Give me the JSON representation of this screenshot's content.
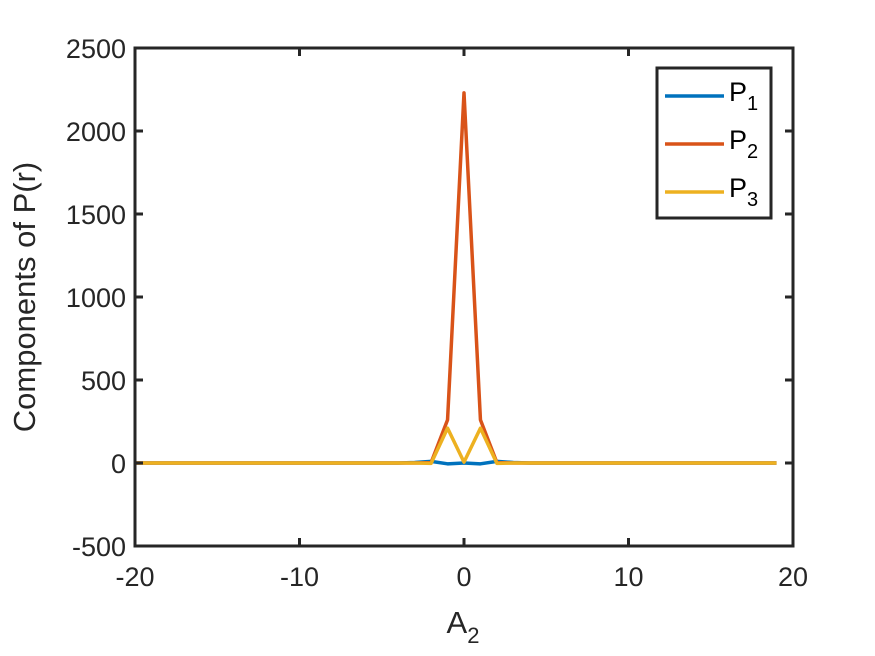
{
  "chart_data": {
    "type": "line",
    "title": "",
    "xlabel": {
      "base": "A",
      "sub": "2"
    },
    "ylabel": "Components of P(r)",
    "xlim": [
      -20,
      20
    ],
    "ylim": [
      -500,
      2500
    ],
    "xticks": [
      -20,
      -10,
      0,
      10,
      20
    ],
    "yticks": [
      -500,
      0,
      500,
      1000,
      1500,
      2000,
      2500
    ],
    "xtick_labels": [
      "-20",
      "-10",
      "0",
      "10",
      "20"
    ],
    "ytick_labels": [
      "-500",
      "0",
      "500",
      "1000",
      "1500",
      "2000",
      "2500"
    ],
    "grid": false,
    "legend_position": "top-right",
    "x": [
      -20,
      -19,
      -18,
      -17,
      -16,
      -15,
      -14,
      -13,
      -12,
      -11,
      -10,
      -9,
      -8,
      -7,
      -6,
      -5,
      -4,
      -3,
      -2,
      -1,
      0,
      1,
      2,
      3,
      4,
      5,
      6,
      7,
      8,
      9,
      10,
      11,
      12,
      13,
      14,
      15,
      16,
      17,
      18,
      19
    ],
    "series": [
      {
        "name": {
          "base": "P",
          "sub": "1"
        },
        "color": "#0072BD",
        "values": [
          0,
          0,
          0,
          0,
          0,
          0,
          0,
          0,
          0,
          0,
          0,
          0,
          0,
          0,
          0,
          0,
          0,
          3,
          10,
          -5,
          0,
          -5,
          10,
          3,
          0,
          0,
          0,
          0,
          0,
          0,
          0,
          0,
          0,
          0,
          0,
          0,
          0,
          0,
          0,
          0
        ]
      },
      {
        "name": {
          "base": "P",
          "sub": "2"
        },
        "color": "#D95319",
        "values": [
          0,
          0,
          0,
          0,
          0,
          0,
          0,
          0,
          0,
          0,
          0,
          0,
          0,
          0,
          0,
          0,
          0,
          0,
          2,
          260,
          2230,
          260,
          2,
          0,
          0,
          0,
          0,
          0,
          0,
          0,
          0,
          0,
          0,
          0,
          0,
          0,
          0,
          0,
          0,
          0
        ]
      },
      {
        "name": {
          "base": "P",
          "sub": "3"
        },
        "color": "#EDB120",
        "values": [
          0,
          0,
          0,
          0,
          0,
          0,
          0,
          0,
          0,
          0,
          0,
          0,
          0,
          0,
          0,
          0,
          0,
          0,
          -2,
          210,
          5,
          210,
          -2,
          0,
          0,
          0,
          0,
          0,
          0,
          0,
          0,
          0,
          0,
          0,
          0,
          0,
          0,
          0,
          0,
          0
        ]
      }
    ]
  }
}
